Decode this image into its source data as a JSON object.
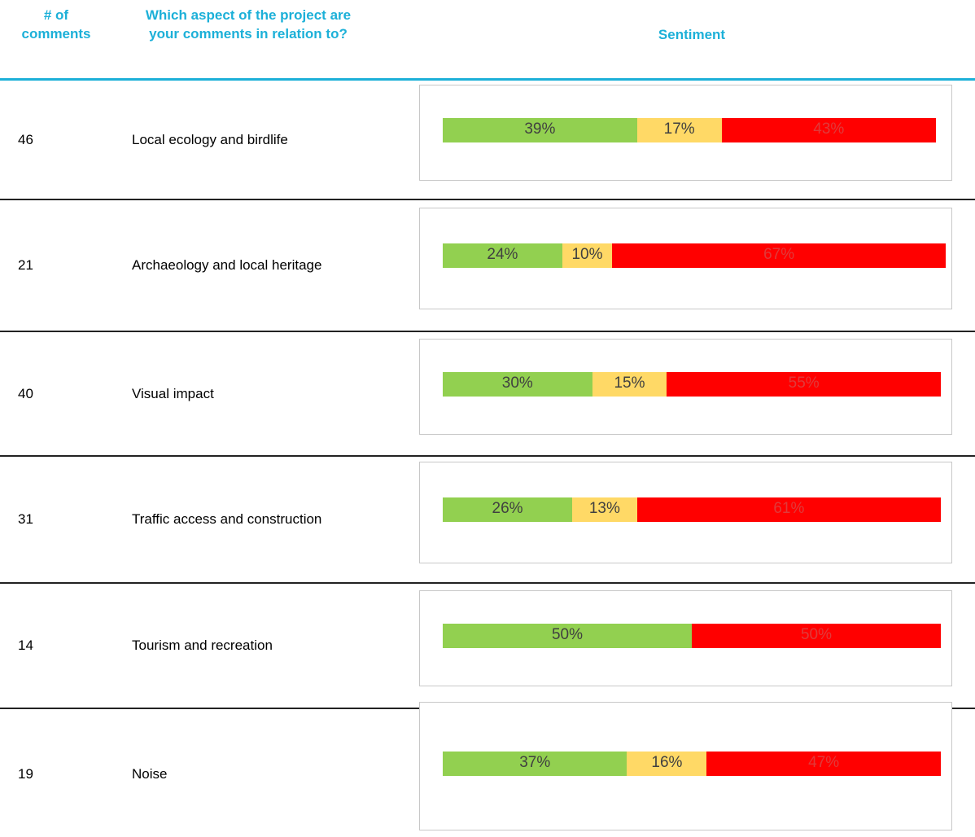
{
  "header": {
    "count": [
      "# of",
      "comments"
    ],
    "aspect": [
      "Which aspect of the project are",
      "your comments in relation to?"
    ],
    "sentiment": "Sentiment"
  },
  "table": {
    "rows": [
      {
        "count": "46",
        "aspect": "Local ecology and birdlife",
        "segments": [
          {
            "value": 39,
            "label": "39%",
            "color": "#92d050",
            "label_color": "#404040"
          },
          {
            "value": 17,
            "label": "17%",
            "color": "#ffd966",
            "label_color": "#404040"
          },
          {
            "value": 43,
            "label": "43%",
            "color": "#ff0000",
            "label_color": "#e03a3a"
          }
        ]
      },
      {
        "count": "21",
        "aspect": "Archaeology and local heritage",
        "segments": [
          {
            "value": 24,
            "label": "24%",
            "color": "#92d050",
            "label_color": "#404040"
          },
          {
            "value": 10,
            "label": "10%",
            "color": "#ffd966",
            "label_color": "#404040"
          },
          {
            "value": 67,
            "label": "67%",
            "color": "#ff0000",
            "label_color": "#e03a3a"
          }
        ]
      },
      {
        "count": "40",
        "aspect": "Visual impact",
        "segments": [
          {
            "value": 30,
            "label": "30%",
            "color": "#92d050",
            "label_color": "#404040"
          },
          {
            "value": 15,
            "label": "15%",
            "color": "#ffd966",
            "label_color": "#404040"
          },
          {
            "value": 55,
            "label": "55%",
            "color": "#ff0000",
            "label_color": "#e03a3a"
          }
        ]
      },
      {
        "count": "31",
        "aspect": "Traffic access and construction",
        "segments": [
          {
            "value": 26,
            "label": "26%",
            "color": "#92d050",
            "label_color": "#404040"
          },
          {
            "value": 13,
            "label": "13%",
            "color": "#ffd966",
            "label_color": "#404040"
          },
          {
            "value": 61,
            "label": "61%",
            "color": "#ff0000",
            "label_color": "#e03a3a"
          }
        ]
      },
      {
        "count": "14",
        "aspect": "Tourism and recreation",
        "segments": [
          {
            "value": 50,
            "label": "50%",
            "color": "#92d050",
            "label_color": "#404040"
          },
          {
            "value": 50,
            "label": "50%",
            "color": "#ff0000",
            "label_color": "#e03a3a"
          }
        ]
      },
      {
        "count": "19",
        "aspect": "Noise",
        "segments": [
          {
            "value": 37,
            "label": "37%",
            "color": "#92d050",
            "label_color": "#404040"
          },
          {
            "value": 16,
            "label": "16%",
            "color": "#ffd966",
            "label_color": "#404040"
          },
          {
            "value": 47,
            "label": "47%",
            "color": "#ff0000",
            "label_color": "#e03a3a"
          }
        ]
      }
    ]
  }
}
